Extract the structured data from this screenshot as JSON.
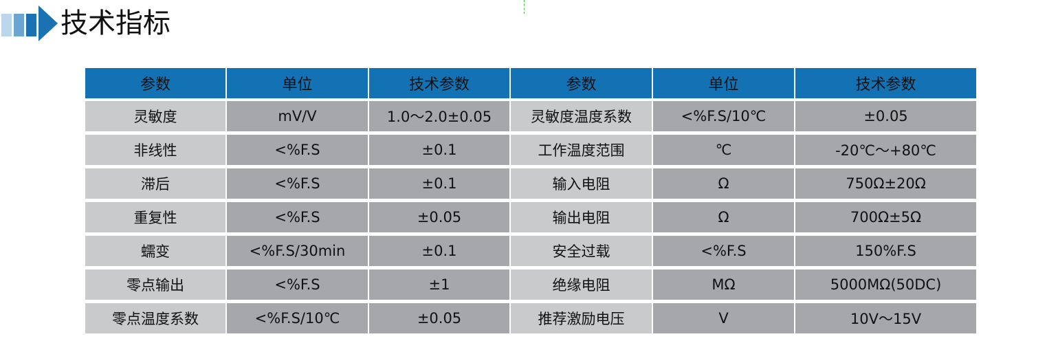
{
  "title": "技术指标",
  "colors": {
    "header": "#1272b4",
    "param_cell": "#c9cacc",
    "value_cell": "#a5a7aa",
    "accent": "#1a72b3"
  },
  "table": {
    "headers": [
      "参数",
      "单位",
      "技术参数",
      "参数",
      "单位",
      "技术参数"
    ],
    "rows": [
      [
        "灵敏度",
        "mV/V",
        "1.0～2.0±0.05",
        "灵敏度温度系数",
        "<%F.S/10℃",
        "±0.05"
      ],
      [
        "非线性",
        "<%F.S",
        "±0.1",
        "工作温度范围",
        "℃",
        "-20℃～+80℃"
      ],
      [
        "滞后",
        "<%F.S",
        "±0.1",
        "输入电阻",
        "Ω",
        "750Ω±20Ω"
      ],
      [
        "重复性",
        "<%F.S",
        "±0.05",
        "输出电阻",
        "Ω",
        "700Ω±5Ω"
      ],
      [
        "蠕变",
        "<%F.S/30min",
        "±0.1",
        "安全过载",
        "<%F.S",
        "150%F.S"
      ],
      [
        "零点输出",
        "<%F.S",
        "±1",
        "绝缘电阻",
        "MΩ",
        "5000MΩ(50DC)"
      ],
      [
        "零点温度系数",
        "<%F.S/10℃",
        "±0.05",
        "推荐激励电压",
        "V",
        "10V～15V"
      ]
    ]
  }
}
